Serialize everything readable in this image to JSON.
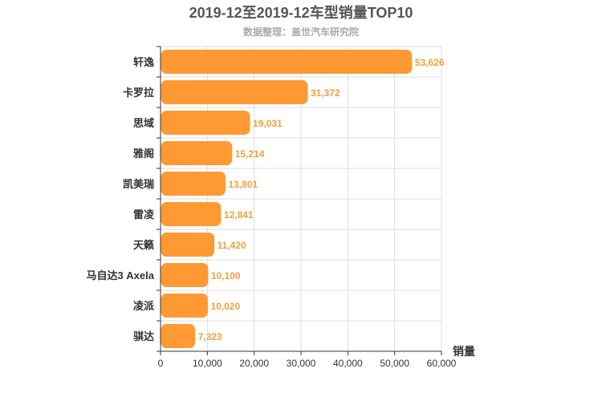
{
  "chart_data": {
    "type": "bar",
    "orientation": "horizontal",
    "title": "2019-12至2019-12车型销量TOP10",
    "subtitle": "数据整理：盖世汽车研究院",
    "xlabel": "销量",
    "ylabel": "",
    "xlim": [
      0,
      60000
    ],
    "xticks": [
      0,
      10000,
      20000,
      30000,
      40000,
      50000,
      60000
    ],
    "xtick_labels": [
      "0",
      "10,000",
      "20,000",
      "30,000",
      "40,000",
      "50,000",
      "60,000"
    ],
    "grid": true,
    "categories": [
      "轩逸",
      "卡罗拉",
      "思域",
      "雅阁",
      "凯美瑞",
      "雷凌",
      "天籁",
      "马自达3 Axela",
      "凌派",
      "骐达"
    ],
    "values": [
      53626,
      31372,
      19031,
      15214,
      13801,
      12841,
      11420,
      10100,
      10020,
      7323
    ],
    "value_labels": [
      "53,626",
      "31,372",
      "19,031",
      "15,214",
      "13,801",
      "12,841",
      "11,420",
      "10,100",
      "10,020",
      "7,323"
    ],
    "colors": {
      "bar": "#ff9933",
      "value_label": "#f0a040",
      "grid": "#dddddd",
      "axis": "#333333"
    }
  }
}
